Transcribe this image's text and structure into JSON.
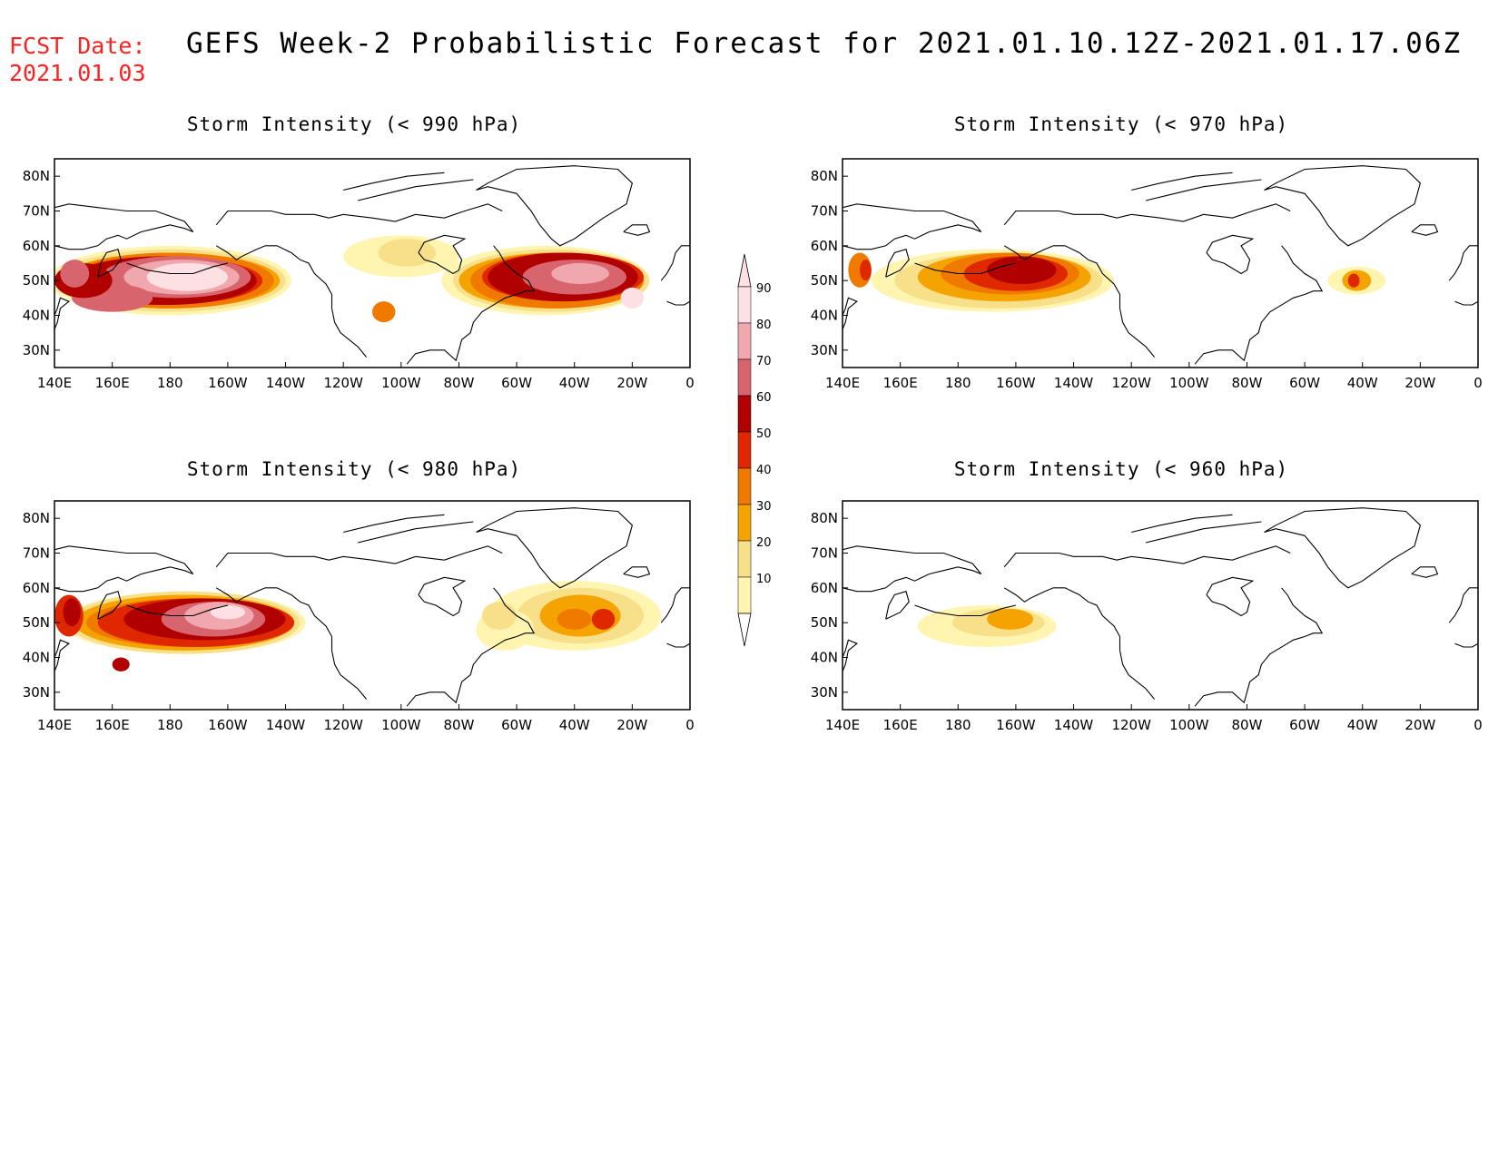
{
  "header": {
    "fcst_label": "FCST Date:",
    "fcst_date": "2021.01.03",
    "title": "GEFS Week-2 Probabilistic Forecast for 2021.01.10.12Z-2021.01.17.06Z"
  },
  "colors": {
    "p10": "#fff5b0",
    "p20": "#f8e08a",
    "p30": "#f5a300",
    "p40": "#f07a00",
    "p50": "#e02800",
    "p60": "#b00000",
    "p70": "#d8646e",
    "p80": "#f0a8ae",
    "p90": "#fce0e4"
  },
  "colorbar": {
    "labels": [
      "10",
      "20",
      "30",
      "40",
      "50",
      "60",
      "70",
      "80",
      "90"
    ]
  },
  "axes": {
    "lon_labels": [
      "140E",
      "160E",
      "180",
      "160W",
      "140W",
      "120W",
      "100W",
      "80W",
      "60W",
      "40W",
      "20W",
      "0"
    ],
    "lat_labels": [
      "80N",
      "70N",
      "60N",
      "50N",
      "40N",
      "30N"
    ]
  },
  "panels": [
    {
      "id": "p990",
      "title": "Storm Intensity (< 990 hPa)"
    },
    {
      "id": "p970",
      "title": "Storm Intensity (< 970 hPa)"
    },
    {
      "id": "p980",
      "title": "Storm Intensity (< 980 hPa)"
    },
    {
      "id": "p960",
      "title": "Storm Intensity (< 960 hPa)"
    }
  ]
}
